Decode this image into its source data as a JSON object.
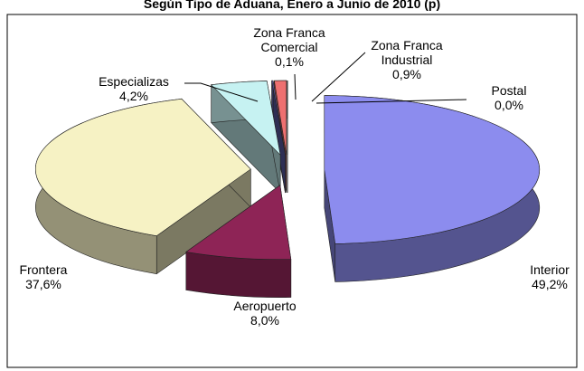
{
  "chart_data": {
    "type": "pie3d",
    "title": "Según Tipo de Aduana, Enero a Junio de 2010 (p)",
    "categories": [
      "Interior",
      "Aeropuerto",
      "Frontera",
      "Especializas",
      "Zona Franca Comercial",
      "Zona Franca Industrial",
      "Postal"
    ],
    "values": [
      49.2,
      8.0,
      37.6,
      4.2,
      0.1,
      0.9,
      0.0
    ],
    "value_labels": [
      "49,2%",
      "8,0%",
      "37,6%",
      "4,2%",
      "0,1%",
      "0,9%",
      "0,0%"
    ],
    "colors": [
      "#8c8cee",
      "#8e2456",
      "#f6f2c4",
      "#c6f2f2",
      "#5c5ca8",
      "#ee7070",
      "#3a3aa8"
    ]
  }
}
